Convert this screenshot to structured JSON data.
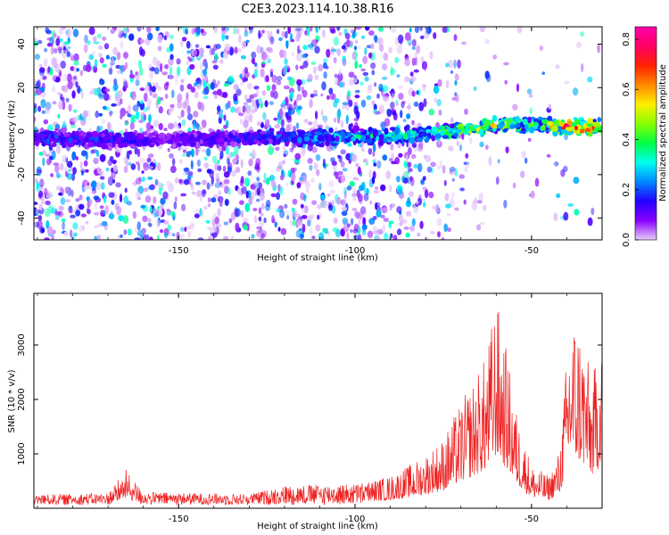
{
  "title": "C2E3.2023.114.10.38.R16",
  "chart_data": [
    {
      "type": "heatmap",
      "xlabel": "Height of straight line (km)",
      "ylabel": "Frequency (Hz)",
      "xlim": [
        -191,
        -30
      ],
      "ylim": [
        -50,
        48
      ],
      "xticks": [
        -150,
        -100,
        -50
      ],
      "yticks": [
        -40,
        -20,
        0,
        20,
        40
      ],
      "grid": false,
      "colorbar": {
        "label": "Normalized spectral amplitude",
        "range": [
          0,
          0.85
        ],
        "ticks": [
          0.0,
          0.2,
          0.4,
          0.6,
          0.8
        ],
        "colormap": [
          "#e8ccf8",
          "#8800ff",
          "#2200ff",
          "#0088ff",
          "#00ffee",
          "#00ff44",
          "#88ff00",
          "#ffee00",
          "#ff8800",
          "#ff2200",
          "#ff0066",
          "#ff00aa"
        ]
      },
      "ridge": [
        {
          "x": -191,
          "y": -3,
          "amp": 0.25
        },
        {
          "x": -170,
          "y": -4,
          "amp": 0.2
        },
        {
          "x": -150,
          "y": -4,
          "amp": 0.15
        },
        {
          "x": -128,
          "y": -3,
          "amp": 0.2
        },
        {
          "x": -110,
          "y": -3,
          "amp": 0.3
        },
        {
          "x": -90,
          "y": -2,
          "amp": 0.38
        },
        {
          "x": -78,
          "y": -1,
          "amp": 0.42
        },
        {
          "x": -68,
          "y": 1,
          "amp": 0.6
        },
        {
          "x": -58,
          "y": 3,
          "amp": 0.55
        },
        {
          "x": -48,
          "y": 3,
          "amp": 0.4
        },
        {
          "x": -40,
          "y": 2,
          "amp": 0.8
        },
        {
          "x": -30,
          "y": 2,
          "amp": 0.75
        }
      ]
    },
    {
      "type": "line",
      "xlabel": "Height of straight line (km)",
      "ylabel": "SNR (10 * v/v)",
      "xlim": [
        -191,
        -30
      ],
      "ylim": [
        0,
        3950
      ],
      "xticks": [
        -150,
        -100,
        -50
      ],
      "yticks": [
        1000,
        2000,
        3000
      ],
      "grid": false,
      "color": "#ee2222",
      "envelope": [
        {
          "x": -191,
          "y": 250
        },
        {
          "x": -170,
          "y": 280
        },
        {
          "x": -165,
          "y": 720
        },
        {
          "x": -160,
          "y": 300
        },
        {
          "x": -130,
          "y": 260
        },
        {
          "x": -120,
          "y": 420
        },
        {
          "x": -100,
          "y": 450
        },
        {
          "x": -90,
          "y": 600
        },
        {
          "x": -82,
          "y": 900
        },
        {
          "x": -75,
          "y": 1300
        },
        {
          "x": -70,
          "y": 1950
        },
        {
          "x": -67,
          "y": 2300
        },
        {
          "x": -63,
          "y": 2800
        },
        {
          "x": -60,
          "y": 3900
        },
        {
          "x": -57,
          "y": 2900
        },
        {
          "x": -54,
          "y": 1700
        },
        {
          "x": -50,
          "y": 800
        },
        {
          "x": -45,
          "y": 600
        },
        {
          "x": -42,
          "y": 1100
        },
        {
          "x": -39,
          "y": 3700
        },
        {
          "x": -36,
          "y": 3400
        },
        {
          "x": -33,
          "y": 2400
        },
        {
          "x": -31,
          "y": 2900
        },
        {
          "x": -30,
          "y": 3950
        }
      ]
    }
  ]
}
